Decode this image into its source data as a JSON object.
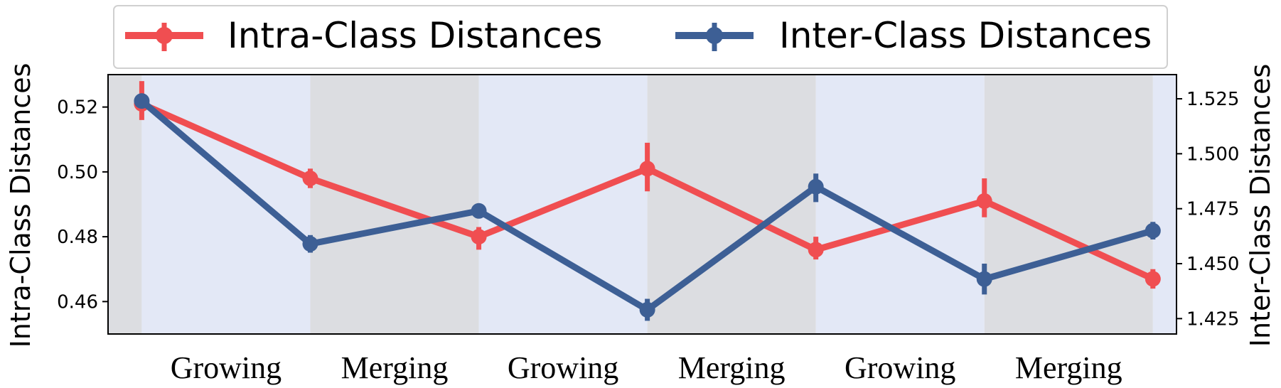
{
  "chart_data": {
    "type": "line",
    "x": [
      0,
      1,
      2,
      3,
      4,
      5,
      6
    ],
    "phase_labels": [
      "Growing",
      "Merging",
      "Growing",
      "Merging",
      "Growing",
      "Merging"
    ],
    "ylabel_left": "Intra-Class Distances",
    "ylabel_right": "Inter-Class Distances",
    "ylim_left": [
      0.45,
      0.53
    ],
    "ylim_right": [
      1.418,
      1.536
    ],
    "yticks_left": [
      "0.46",
      "0.48",
      "0.50",
      "0.52"
    ],
    "yticks_right": [
      "1.425",
      "1.450",
      "1.475",
      "1.500",
      "1.525"
    ],
    "legend_position": "top-center",
    "series": [
      {
        "name": "Intra-Class Distances",
        "axis": "left",
        "color": "#f04e51",
        "values": [
          0.521,
          0.498,
          0.48,
          0.501,
          0.476,
          0.491,
          0.467
        ],
        "err_lo": [
          0.516,
          0.495,
          0.476,
          0.494,
          0.473,
          0.486,
          0.464
        ],
        "err_hi": [
          0.528,
          0.501,
          0.483,
          0.509,
          0.48,
          0.498,
          0.47
        ]
      },
      {
        "name": "Inter-Class Distances",
        "axis": "right",
        "color": "#3d5f95",
        "values": [
          1.524,
          1.459,
          1.474,
          1.429,
          1.485,
          1.443,
          1.465
        ],
        "err_lo": [
          1.521,
          1.455,
          1.471,
          1.424,
          1.478,
          1.436,
          1.461
        ],
        "err_hi": [
          1.527,
          1.463,
          1.477,
          1.434,
          1.491,
          1.45,
          1.469
        ]
      }
    ],
    "background_bands": [
      {
        "x_from": -0.2,
        "x_to": 0,
        "phase": "merging",
        "color": "#dcdde1"
      },
      {
        "x_from": 0,
        "x_to": 1,
        "phase": "growing",
        "color": "#e3e8f6"
      },
      {
        "x_from": 1,
        "x_to": 2,
        "phase": "merging",
        "color": "#dcdde1"
      },
      {
        "x_from": 2,
        "x_to": 3,
        "phase": "growing",
        "color": "#e3e8f6"
      },
      {
        "x_from": 3,
        "x_to": 4,
        "phase": "merging",
        "color": "#dcdde1"
      },
      {
        "x_from": 4,
        "x_to": 5,
        "phase": "growing",
        "color": "#e3e8f6"
      },
      {
        "x_from": 5,
        "x_to": 6,
        "phase": "merging",
        "color": "#dcdde1"
      },
      {
        "x_from": 6,
        "x_to": 6.14,
        "phase": "growing",
        "color": "#e3e8f6"
      }
    ]
  }
}
